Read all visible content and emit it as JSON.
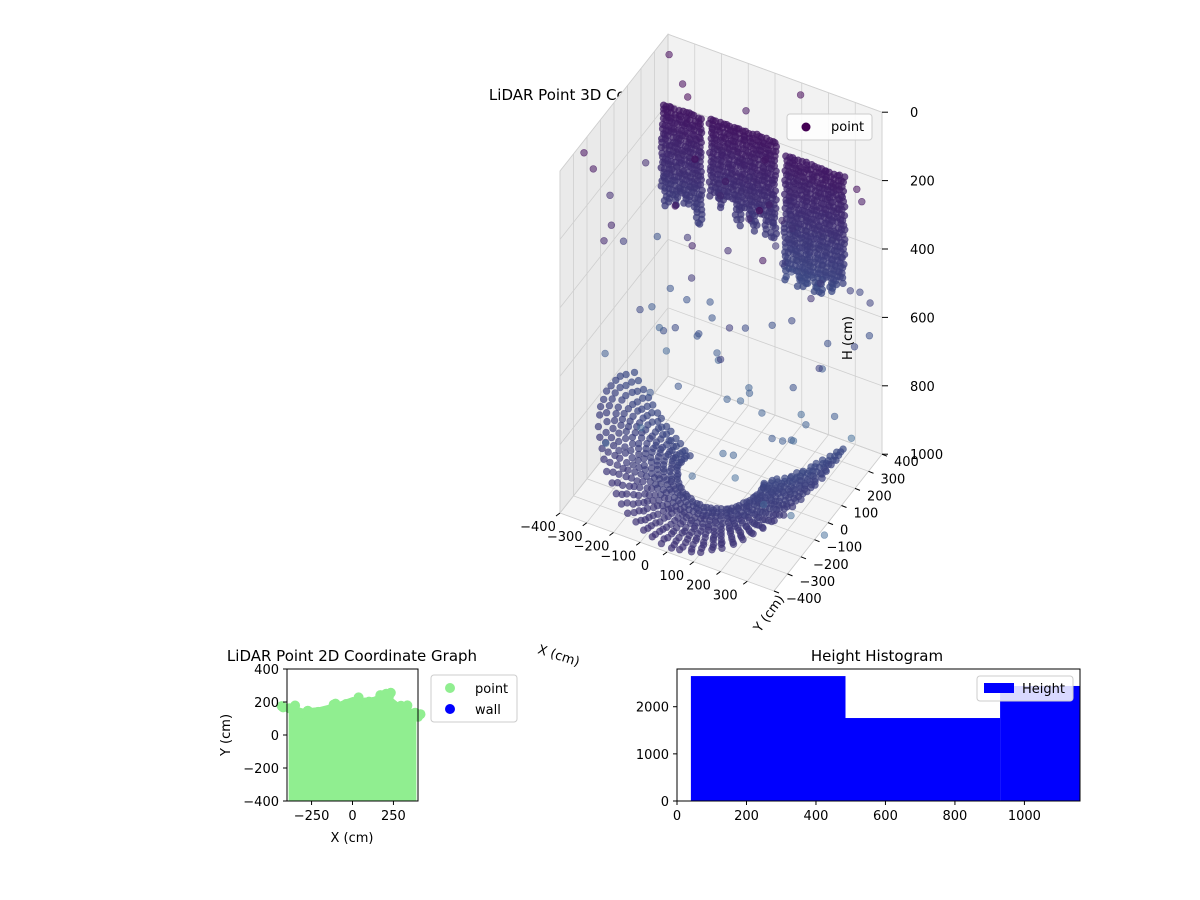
{
  "chart_data": [
    {
      "type": "scatter",
      "projection": "3d",
      "title": "LiDAR Point 3D Coordinate Graph",
      "xlabel": "X (cm)",
      "ylabel": "Y (cm)",
      "zlabel": "H (cm)",
      "x_ticks": [
        "−400",
        "−300",
        "−200",
        "−100",
        "0",
        "100",
        "200",
        "300"
      ],
      "y_ticks": [
        "−400",
        "−300",
        "−200",
        "−100",
        "0",
        "100",
        "200",
        "300",
        "400"
      ],
      "z_ticks": [
        "0",
        "200",
        "400",
        "600",
        "800",
        "1000"
      ],
      "xlim": [
        -400,
        400
      ],
      "ylim": [
        -400,
        400
      ],
      "zlim": [
        0,
        1000
      ],
      "z_inverted": true,
      "colormap": "viridis",
      "legend": {
        "label": "point",
        "placement": "top-right",
        "marker_color": "#440154"
      },
      "series": [
        {
          "name": "point",
          "description_values": "floor ring and wall scan",
          "floor_ring": {
            "angle_range_deg": [
              -20,
              200
            ],
            "radius_range_cm": [
              150,
              420
            ],
            "h_cm": 0
          },
          "wall_blocks": [
            {
              "x_range": [
                -380,
                -230
              ],
              "h_range": [
                160,
                480
              ]
            },
            {
              "x_range": [
                -200,
                40
              ],
              "h_range": [
                150,
                440
              ]
            },
            {
              "x_range": [
                80,
                300
              ],
              "h_range": [
                180,
                560
              ]
            }
          ]
        }
      ]
    },
    {
      "type": "scatter",
      "title": "LiDAR Point 2D Coordinate Graph",
      "xlabel": "X (cm)",
      "ylabel": "Y (cm)",
      "x_ticks": [
        "−250",
        "0",
        "250"
      ],
      "x_tick_values": [
        -250,
        0,
        250
      ],
      "y_ticks": [
        "−400",
        "−200",
        "0",
        "200",
        "400"
      ],
      "y_tick_values": [
        -400,
        -200,
        0,
        200,
        400
      ],
      "xlim": [
        -400,
        400
      ],
      "ylim": [
        -400,
        400
      ],
      "legend": {
        "placement": "outside-right"
      },
      "series": [
        {
          "name": "point",
          "color": "#90ee90",
          "region_top_profile": [
            [
              -390,
              185
            ],
            [
              -300,
              160
            ],
            [
              -200,
              170
            ],
            [
              -100,
              195
            ],
            [
              0,
              230
            ],
            [
              100,
              220
            ],
            [
              200,
              260
            ],
            [
              300,
              180
            ],
            [
              390,
              150
            ]
          ]
        },
        {
          "name": "wall",
          "color": "#0000ff",
          "values": []
        }
      ]
    },
    {
      "type": "bar",
      "subtype": "histogram",
      "title": "Height Histogram",
      "x_ticks": [
        "0",
        "200",
        "400",
        "600",
        "800",
        "1000"
      ],
      "x_tick_values": [
        0,
        200,
        400,
        600,
        800,
        1000
      ],
      "y_ticks": [
        "0",
        "1000",
        "2000"
      ],
      "y_tick_values": [
        0,
        1000,
        2000
      ],
      "xlim": [
        0,
        1160
      ],
      "ylim": [
        0,
        2800
      ],
      "legend": {
        "placement": "top-right"
      },
      "series": [
        {
          "name": "Height",
          "color": "#0000ff",
          "bins": [
            {
              "x0": 40,
              "x1": 485,
              "count": 2650
            },
            {
              "x0": 485,
              "x1": 930,
              "count": 1760
            },
            {
              "x0": 930,
              "x1": 1160,
              "count": 2440
            }
          ]
        }
      ]
    }
  ]
}
